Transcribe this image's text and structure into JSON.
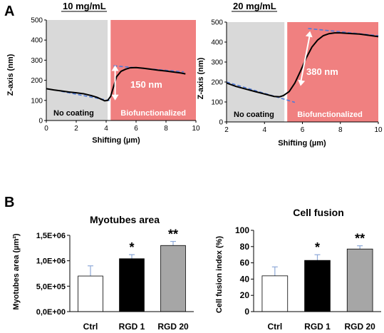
{
  "panels": [
    {
      "letter": "A"
    },
    {
      "letter": "B"
    }
  ],
  "chart_data": [
    {
      "type": "line",
      "title": "10 mg/mL",
      "xlabel": "Shifting (µm)",
      "ylabel": "Z-axis (nm)",
      "xlim": [
        0,
        10
      ],
      "ylim": [
        0,
        500
      ],
      "xticks": [
        "0",
        "2",
        "4",
        "6",
        "8",
        "10"
      ],
      "yticks": [
        "0",
        "100",
        "200",
        "300",
        "400",
        "500"
      ],
      "regions": [
        {
          "label": "No coating",
          "x": [
            0,
            4.1
          ],
          "color": "#d9d9d9"
        },
        {
          "label": "Biofunctionalized",
          "x": [
            4.3,
            10
          ],
          "color": "#f08080"
        }
      ],
      "series": [
        {
          "x": [
            0,
            0.5,
            1,
            1.5,
            2,
            2.5,
            3,
            3.4,
            3.7,
            3.9,
            4.1,
            4.3,
            4.5,
            4.7,
            5,
            5.3,
            5.6,
            6,
            6.5,
            7,
            7.5,
            8,
            8.5,
            9,
            9.3
          ],
          "y": [
            158,
            152,
            147,
            142,
            138,
            133,
            124,
            115,
            105,
            98,
            100,
            120,
            170,
            218,
            245,
            255,
            262,
            263,
            260,
            255,
            250,
            246,
            241,
            236,
            232
          ]
        }
      ],
      "reference_lines": [
        {
          "x": [
            1,
            4.3
          ],
          "y": [
            145,
            98
          ]
        },
        {
          "x": [
            4.5,
            9.2
          ],
          "y": [
            272,
            242
          ]
        }
      ],
      "annotation": "150 nm"
    },
    {
      "type": "line",
      "title": "20 mg/mL",
      "xlabel": "Shifting (µm)",
      "ylabel": "Z-axis (nm)",
      "xlim": [
        2,
        10
      ],
      "ylim": [
        0,
        500
      ],
      "xticks": [
        "2",
        "4",
        "6",
        "8",
        "10"
      ],
      "yticks": [
        "0",
        "100",
        "200",
        "300",
        "400",
        "500"
      ],
      "regions": [
        {
          "label": "No coating",
          "x": [
            2,
            5.05
          ],
          "color": "#d9d9d9"
        },
        {
          "label": "Biofunctionalized",
          "x": [
            5.2,
            10
          ],
          "color": "#f08080"
        }
      ],
      "series": [
        {
          "x": [
            2,
            2.5,
            3,
            3.5,
            4,
            4.5,
            4.8,
            5.0,
            5.3,
            5.6,
            5.9,
            6.2,
            6.5,
            6.8,
            7.1,
            7.4,
            7.7,
            8,
            8.5,
            9,
            9.5,
            10
          ],
          "y": [
            195,
            178,
            165,
            152,
            140,
            128,
            126,
            132,
            152,
            195,
            255,
            320,
            375,
            410,
            432,
            442,
            446,
            446,
            443,
            440,
            434,
            427
          ]
        }
      ],
      "reference_lines": [
        {
          "x": [
            2,
            5.6
          ],
          "y": [
            200,
            98
          ]
        },
        {
          "x": [
            6.3,
            10
          ],
          "y": [
            468,
            432
          ]
        }
      ],
      "annotation": "380 nm"
    },
    {
      "type": "bar",
      "title": "Myotubes area",
      "ylabel": "Myotubes area (µm²)",
      "categories": [
        "Ctrl",
        "RGD 1",
        "RGD 20"
      ],
      "values": [
        700000,
        1040000,
        1300000
      ],
      "errors": [
        200000,
        80000,
        80000
      ],
      "colors": [
        "#ffffff",
        "#000000",
        "#a6a6a6"
      ],
      "significance": [
        "",
        "*",
        "**"
      ],
      "ylim": [
        0,
        1500000
      ],
      "yticks": [
        "0,0E+00",
        "5,0E+05",
        "1,0E+06",
        "1,5E+06"
      ]
    },
    {
      "type": "bar",
      "title": "Cell fusion",
      "ylabel": "Cell fusion index (%)",
      "categories": [
        "Ctrl",
        "RGD 1",
        "RGD 20"
      ],
      "values": [
        44,
        63,
        77
      ],
      "errors": [
        11,
        7,
        4
      ],
      "colors": [
        "#ffffff",
        "#000000",
        "#a6a6a6"
      ],
      "significance": [
        "",
        "*",
        "**"
      ],
      "ylim": [
        0,
        100
      ],
      "yticks": [
        "0",
        "20",
        "40",
        "60",
        "80",
        "100"
      ]
    }
  ]
}
